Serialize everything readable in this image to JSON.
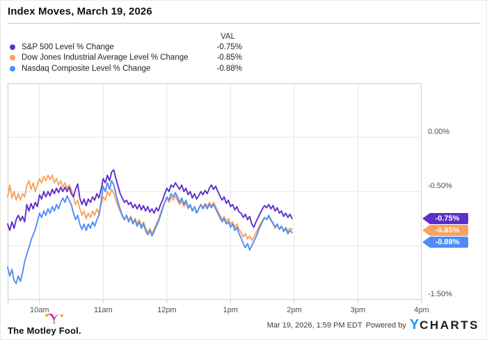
{
  "title": "Index Moves, March 19, 2026",
  "legend": {
    "val_header": "VAL",
    "items": [
      {
        "label": "S&P 500 Level % Change",
        "value": "-0.75%"
      },
      {
        "label": "Dow Jones Industrial Average Level % Change",
        "value": "-0.85%"
      },
      {
        "label": "Nasdaq Composite Level % Change",
        "value": "-0.88%"
      }
    ]
  },
  "chart_data": {
    "type": "line",
    "title": "Index Moves, March 19, 2026",
    "x_axis": {
      "description": "minutes since 9:30am market open, axis spans 9:30am to 4pm",
      "range_minutes": [
        0,
        390
      ],
      "step_minutes": 2,
      "tick_minutes": [
        30,
        90,
        150,
        210,
        270,
        330,
        390
      ],
      "labels": [
        "10am",
        "11am",
        "12pm",
        "1pm",
        "2pm",
        "3pm",
        "4pm"
      ],
      "grid": true
    },
    "y_axis": {
      "min": -1.5,
      "max": 0.5,
      "gridlines": [
        0.0,
        -0.5,
        -1.0
      ],
      "ticks": [
        {
          "label": "0.00%",
          "value": 0.0
        },
        {
          "label": "-0.50%",
          "value": -0.5
        },
        {
          "label": "-1.50%",
          "value": -1.5
        }
      ],
      "grid": true
    },
    "legend_position": "top-left",
    "draw_order": [
      1,
      2,
      0
    ],
    "series": [
      {
        "id": "sp500",
        "name": "S&P 500 Level % Change",
        "color": "#5e2eca",
        "end_label": "-0.75%",
        "end_value": -0.75,
        "values": [
          -0.8,
          -0.86,
          -0.78,
          -0.84,
          -0.76,
          -0.72,
          -0.77,
          -0.73,
          -0.78,
          -0.62,
          -0.68,
          -0.61,
          -0.66,
          -0.6,
          -0.64,
          -0.53,
          -0.57,
          -0.5,
          -0.55,
          -0.5,
          -0.54,
          -0.48,
          -0.52,
          -0.47,
          -0.51,
          -0.46,
          -0.5,
          -0.46,
          -0.5,
          -0.46,
          -0.52,
          -0.55,
          -0.48,
          -0.43,
          -0.56,
          -0.62,
          -0.57,
          -0.63,
          -0.57,
          -0.6,
          -0.55,
          -0.58,
          -0.52,
          -0.56,
          -0.48,
          -0.38,
          -0.42,
          -0.35,
          -0.4,
          -0.32,
          -0.3,
          -0.38,
          -0.45,
          -0.52,
          -0.56,
          -0.6,
          -0.58,
          -0.62,
          -0.6,
          -0.65,
          -0.62,
          -0.66,
          -0.62,
          -0.67,
          -0.63,
          -0.68,
          -0.64,
          -0.69,
          -0.66,
          -0.7,
          -0.65,
          -0.68,
          -0.62,
          -0.58,
          -0.52,
          -0.47,
          -0.5,
          -0.44,
          -0.46,
          -0.42,
          -0.45,
          -0.48,
          -0.44,
          -0.5,
          -0.47,
          -0.53,
          -0.5,
          -0.56,
          -0.52,
          -0.57,
          -0.54,
          -0.5,
          -0.53,
          -0.49,
          -0.52,
          -0.47,
          -0.44,
          -0.48,
          -0.45,
          -0.5,
          -0.54,
          -0.58,
          -0.55,
          -0.61,
          -0.58,
          -0.64,
          -0.62,
          -0.67,
          -0.64,
          -0.69,
          -0.7,
          -0.74,
          -0.71,
          -0.76,
          -0.73,
          -0.8,
          -0.83,
          -0.78,
          -0.74,
          -0.7,
          -0.66,
          -0.63,
          -0.65,
          -0.62,
          -0.66,
          -0.63,
          -0.68,
          -0.65,
          -0.7,
          -0.68,
          -0.73,
          -0.7,
          -0.74,
          -0.71,
          -0.75
        ]
      },
      {
        "id": "dow",
        "name": "Dow Jones Industrial Average Level % Change",
        "color": "#f7a35c",
        "end_label": "-0.85%",
        "end_value": -0.85,
        "values": [
          -0.55,
          -0.44,
          -0.56,
          -0.5,
          -0.58,
          -0.52,
          -0.58,
          -0.52,
          -0.55,
          -0.45,
          -0.4,
          -0.48,
          -0.42,
          -0.5,
          -0.44,
          -0.38,
          -0.42,
          -0.36,
          -0.4,
          -0.35,
          -0.39,
          -0.35,
          -0.42,
          -0.38,
          -0.44,
          -0.4,
          -0.46,
          -0.42,
          -0.47,
          -0.44,
          -0.48,
          -0.55,
          -0.62,
          -0.58,
          -0.66,
          -0.72,
          -0.68,
          -0.75,
          -0.7,
          -0.74,
          -0.68,
          -0.72,
          -0.66,
          -0.7,
          -0.62,
          -0.55,
          -0.58,
          -0.5,
          -0.54,
          -0.48,
          -0.52,
          -0.58,
          -0.64,
          -0.68,
          -0.73,
          -0.76,
          -0.72,
          -0.77,
          -0.73,
          -0.79,
          -0.75,
          -0.8,
          -0.76,
          -0.82,
          -0.78,
          -0.84,
          -0.88,
          -0.84,
          -0.89,
          -0.85,
          -0.8,
          -0.76,
          -0.7,
          -0.65,
          -0.6,
          -0.56,
          -0.6,
          -0.55,
          -0.58,
          -0.54,
          -0.58,
          -0.62,
          -0.58,
          -0.64,
          -0.6,
          -0.66,
          -0.63,
          -0.68,
          -0.64,
          -0.69,
          -0.66,
          -0.62,
          -0.65,
          -0.61,
          -0.64,
          -0.6,
          -0.63,
          -0.6,
          -0.64,
          -0.68,
          -0.72,
          -0.76,
          -0.73,
          -0.78,
          -0.75,
          -0.8,
          -0.78,
          -0.83,
          -0.8,
          -0.85,
          -0.88,
          -0.92,
          -0.89,
          -0.94,
          -0.91,
          -0.95,
          -0.92,
          -0.88,
          -0.84,
          -0.8,
          -0.77,
          -0.74,
          -0.76,
          -0.73,
          -0.77,
          -0.8,
          -0.84,
          -0.81,
          -0.85,
          -0.82,
          -0.86,
          -0.83,
          -0.87,
          -0.84,
          -0.85
        ]
      },
      {
        "id": "nasdaq",
        "name": "Nasdaq Composite Level % Change",
        "color": "#4f8df5",
        "end_label": "-0.88%",
        "end_value": -0.88,
        "values": [
          -1.2,
          -1.28,
          -1.22,
          -1.32,
          -1.35,
          -1.28,
          -1.33,
          -1.25,
          -1.15,
          -1.08,
          -1.02,
          -0.95,
          -0.9,
          -0.85,
          -0.78,
          -0.7,
          -0.74,
          -0.68,
          -0.72,
          -0.66,
          -0.7,
          -0.64,
          -0.68,
          -0.62,
          -0.66,
          -0.6,
          -0.56,
          -0.6,
          -0.54,
          -0.58,
          -0.62,
          -0.7,
          -0.76,
          -0.72,
          -0.8,
          -0.85,
          -0.8,
          -0.86,
          -0.8,
          -0.84,
          -0.78,
          -0.82,
          -0.76,
          -0.72,
          -0.6,
          -0.45,
          -0.5,
          -0.42,
          -0.48,
          -0.4,
          -0.44,
          -0.52,
          -0.6,
          -0.66,
          -0.72,
          -0.76,
          -0.72,
          -0.78,
          -0.74,
          -0.8,
          -0.76,
          -0.82,
          -0.78,
          -0.84,
          -0.8,
          -0.86,
          -0.9,
          -0.86,
          -0.91,
          -0.87,
          -0.82,
          -0.78,
          -0.72,
          -0.66,
          -0.6,
          -0.55,
          -0.58,
          -0.52,
          -0.55,
          -0.51,
          -0.55,
          -0.6,
          -0.56,
          -0.62,
          -0.58,
          -0.65,
          -0.62,
          -0.68,
          -0.64,
          -0.7,
          -0.66,
          -0.62,
          -0.66,
          -0.62,
          -0.66,
          -0.62,
          -0.65,
          -0.62,
          -0.66,
          -0.7,
          -0.74,
          -0.78,
          -0.75,
          -0.8,
          -0.78,
          -0.83,
          -0.8,
          -0.86,
          -0.83,
          -0.89,
          -0.93,
          -0.98,
          -1.02,
          -0.98,
          -1.04,
          -1.0,
          -0.96,
          -0.92,
          -0.87,
          -0.82,
          -0.78,
          -0.74,
          -0.76,
          -0.72,
          -0.76,
          -0.79,
          -0.83,
          -0.8,
          -0.85,
          -0.82,
          -0.87,
          -0.84,
          -0.89,
          -0.86,
          -0.88
        ]
      }
    ]
  },
  "colors": {
    "sp500": "#5e2eca",
    "dow": "#f7a35c",
    "nasdaq": "#4f8df5",
    "grid": "#e4e4e4",
    "plot_border": "#cfcfcf",
    "ycharts_blue": "#2196f3"
  },
  "footer": {
    "brand": "The Motley Fool.",
    "timestamp": "Mar 19, 2026, 1:59 PM EDT",
    "powered_by": "Powered by",
    "logo_y": "Y",
    "logo_rest": "CHARTS"
  }
}
